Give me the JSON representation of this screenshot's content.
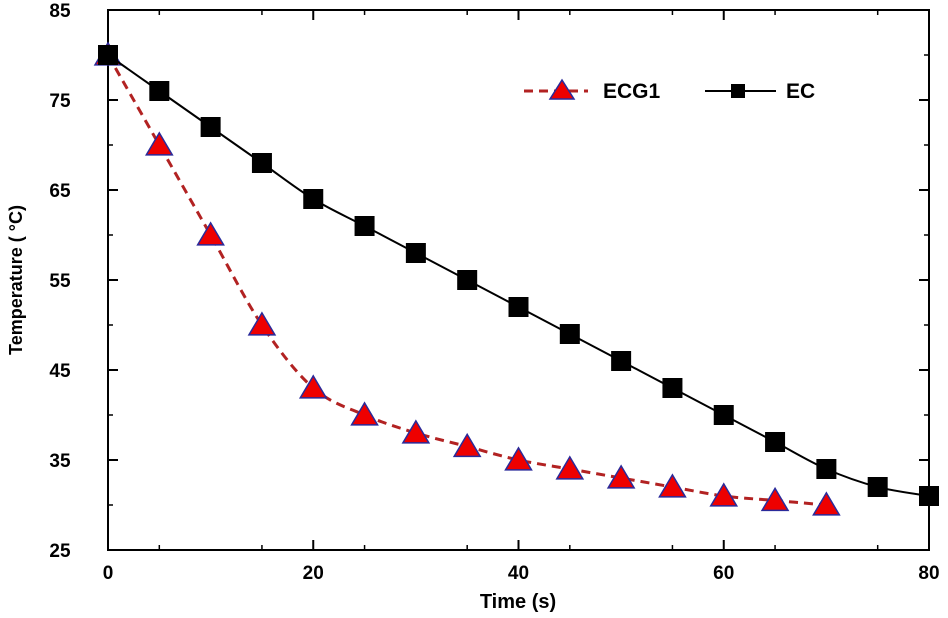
{
  "chart_data": {
    "type": "line",
    "title": "",
    "xlabel": "Time (s)",
    "ylabel": "Temperature ( °C)",
    "xlim": [
      0,
      80
    ],
    "ylim": [
      25,
      85
    ],
    "xticks": [
      0,
      20,
      40,
      60,
      80
    ],
    "yticks": [
      25,
      35,
      45,
      55,
      65,
      75,
      85
    ],
    "grid": false,
    "legend_position": "top-right",
    "series": [
      {
        "name": "ECG1",
        "line_style": "dashed",
        "line_color": "#b22222",
        "marker": "triangle",
        "marker_fill": "#ee0000",
        "marker_edge": "#2a2a9a",
        "x": [
          0,
          5,
          10,
          15,
          20,
          25,
          30,
          35,
          40,
          45,
          50,
          55,
          60,
          65,
          70
        ],
        "values": [
          80,
          70,
          60,
          50,
          43,
          40,
          38,
          36.5,
          35,
          34,
          33,
          32,
          31,
          30.5,
          30
        ]
      },
      {
        "name": "EC",
        "line_style": "solid",
        "line_color": "#000000",
        "marker": "square",
        "marker_fill": "#000000",
        "marker_edge": "#000000",
        "x": [
          0,
          5,
          10,
          15,
          20,
          25,
          30,
          35,
          40,
          45,
          50,
          55,
          60,
          65,
          70,
          75,
          80
        ],
        "values": [
          80,
          76,
          72,
          68,
          64,
          61,
          58,
          55,
          52,
          49,
          46,
          43,
          40,
          37,
          34,
          32,
          31
        ]
      }
    ]
  }
}
